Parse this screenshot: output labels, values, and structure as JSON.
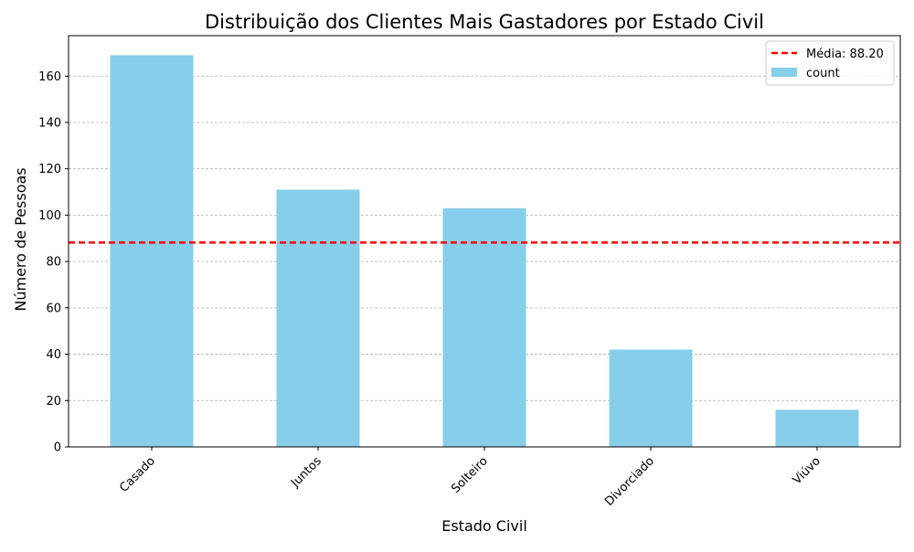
{
  "chart_data": {
    "type": "bar",
    "title": "Distribuição dos Clientes Mais Gastadores por Estado Civil",
    "xlabel": "Estado Civil",
    "ylabel": "Número de Pessoas",
    "categories": [
      "Casado",
      "Juntos",
      "Solteiro",
      "Divorciado",
      "Viúvo"
    ],
    "series": [
      {
        "name": "count",
        "values": [
          169,
          111,
          103,
          42,
          16
        ],
        "color": "#87CEEB"
      }
    ],
    "reference_line": {
      "label": "Média: 88.20",
      "value": 88.2,
      "color": "#FF0000",
      "style": "dashed"
    },
    "ylim": [
      0,
      177.45
    ],
    "yticks": [
      0,
      20,
      40,
      60,
      80,
      100,
      120,
      140,
      160
    ],
    "grid": "y-dashed",
    "legend": {
      "position": "top-right",
      "entries": [
        "Média: 88.20",
        "count"
      ]
    }
  }
}
